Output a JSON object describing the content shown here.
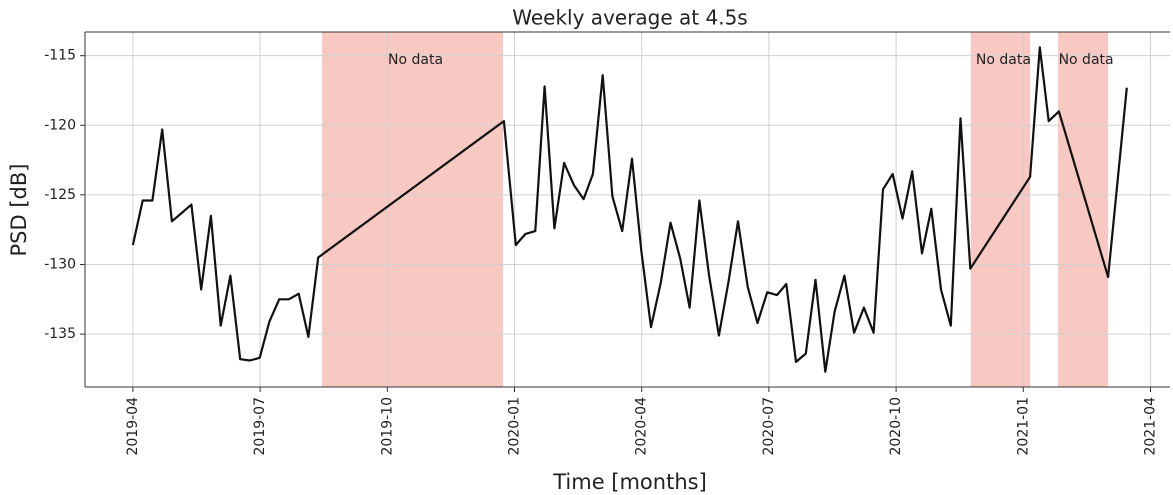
{
  "chart_data": {
    "type": "line",
    "title": "Weekly average at 4.5s",
    "x_label": "Time [months]",
    "y_label": "PSD [dB]",
    "xlim": [
      -1.13,
      24.46
    ],
    "xticks": [
      {
        "value": 0,
        "label": "2019-04"
      },
      {
        "value": 3,
        "label": "2019-07"
      },
      {
        "value": 6,
        "label": "2019-10"
      },
      {
        "value": 9,
        "label": "2020-01"
      },
      {
        "value": 12,
        "label": "2020-04"
      },
      {
        "value": 15,
        "label": "2020-07"
      },
      {
        "value": 18,
        "label": "2020-10"
      },
      {
        "value": 21,
        "label": "2021-01"
      },
      {
        "value": 24,
        "label": "2021-04"
      }
    ],
    "ylim": [
      -138.8,
      -113.3
    ],
    "yticks": [
      -135,
      -130,
      -125,
      -120,
      -115
    ],
    "grid": true,
    "shaded_regions": [
      {
        "start": 4.46,
        "end": 8.73,
        "label": "No data"
      },
      {
        "start": 19.76,
        "end": 21.16,
        "label": "No data"
      },
      {
        "start": 21.82,
        "end": 23.0,
        "label": "No data"
      }
    ],
    "shade_color": "#f8c9c3",
    "series": [
      {
        "name": "PSD",
        "color": "#111111",
        "x": [
          0,
          0.23,
          0.46,
          0.69,
          0.92,
          1.15,
          1.38,
          1.61,
          1.84,
          2.07,
          2.3,
          2.53,
          2.76,
          2.99,
          3.22,
          3.45,
          3.68,
          3.91,
          4.14,
          4.37,
          8.75,
          9.03,
          9.26,
          9.49,
          9.71,
          9.94,
          10.17,
          10.4,
          10.63,
          10.85,
          11.08,
          11.31,
          11.54,
          11.77,
          11.99,
          12.22,
          12.45,
          12.68,
          12.91,
          13.13,
          13.36,
          13.59,
          13.82,
          14.05,
          14.27,
          14.5,
          14.73,
          14.96,
          15.19,
          15.41,
          15.64,
          15.87,
          16.1,
          16.33,
          16.55,
          16.78,
          17.01,
          17.24,
          17.47,
          17.69,
          17.92,
          18.15,
          18.38,
          18.61,
          18.83,
          19.06,
          19.29,
          19.52,
          19.75,
          21.16,
          21.39,
          21.6,
          21.84,
          23.0,
          23.44
        ],
        "values": [
          -128.6,
          -125.4,
          -125.4,
          -120.3,
          -126.9,
          -126.3,
          -125.7,
          -131.8,
          -126.5,
          -134.4,
          -130.8,
          -136.8,
          -136.9,
          -136.7,
          -134.1,
          -132.5,
          -132.5,
          -132.1,
          -135.2,
          -129.5,
          -119.7,
          -128.6,
          -127.8,
          -127.6,
          -117.2,
          -127.4,
          -122.7,
          -124.3,
          -125.3,
          -123.5,
          -116.4,
          -125.1,
          -127.6,
          -122.4,
          -129.0,
          -134.5,
          -131.3,
          -127.0,
          -129.6,
          -133.1,
          -125.4,
          -130.8,
          -135.1,
          -131.2,
          -126.9,
          -131.6,
          -134.2,
          -132.0,
          -132.2,
          -131.4,
          -137.0,
          -136.4,
          -131.1,
          -137.7,
          -133.4,
          -130.8,
          -134.9,
          -133.1,
          -134.9,
          -124.6,
          -123.5,
          -126.7,
          -123.3,
          -129.2,
          -126.0,
          -131.8,
          -134.4,
          -119.5,
          -130.3,
          -123.7,
          -114.4,
          -119.7,
          -119.0,
          -130.9,
          -117.3
        ]
      }
    ]
  }
}
